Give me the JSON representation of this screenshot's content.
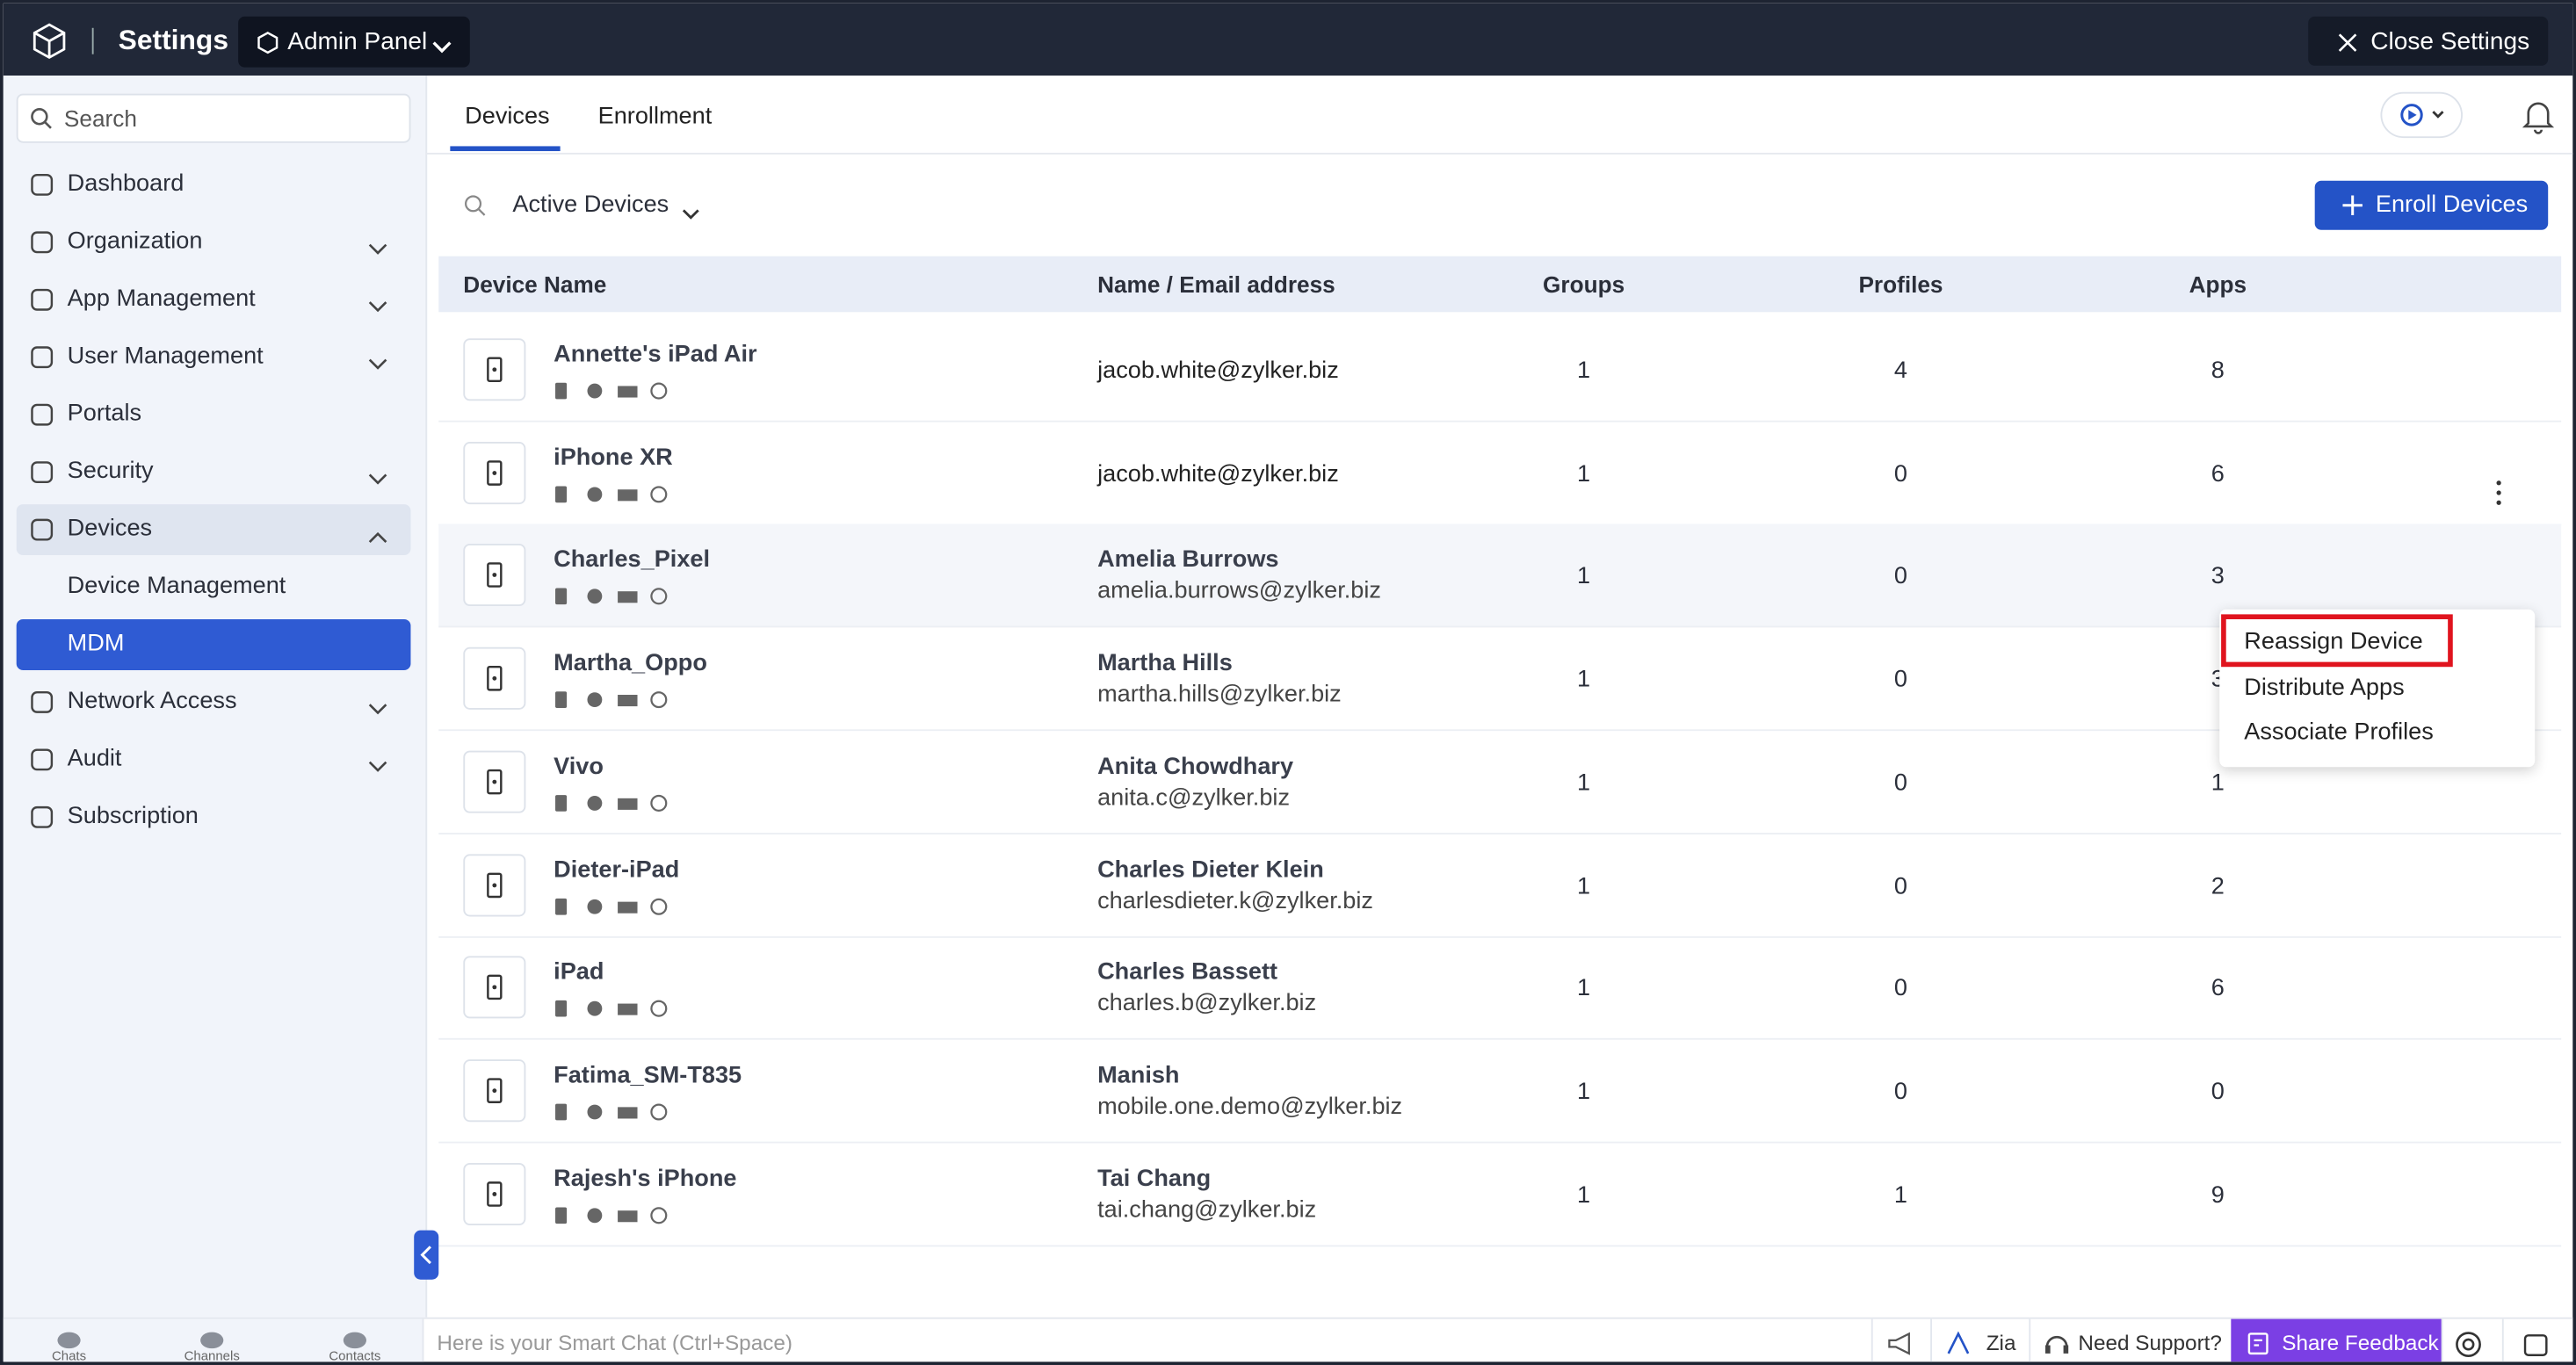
{
  "header": {
    "title": "Settings",
    "panel": "Admin Panel",
    "close": "Close Settings"
  },
  "sidebar": {
    "search": "Search",
    "items": [
      {
        "label": "Dashboard"
      },
      {
        "label": "Organization",
        "chevron": "down"
      },
      {
        "label": "App Management",
        "chevron": "down"
      },
      {
        "label": "User Management",
        "chevron": "down"
      },
      {
        "label": "Portals"
      },
      {
        "label": "Security",
        "chevron": "down"
      },
      {
        "label": "Devices",
        "chevron": "up",
        "highlighted": true,
        "children": [
          {
            "label": "Device Management"
          },
          {
            "label": "MDM",
            "selected": true
          }
        ]
      },
      {
        "label": "Network Access",
        "chevron": "down"
      },
      {
        "label": "Audit",
        "chevron": "down"
      },
      {
        "label": "Subscription"
      }
    ]
  },
  "tabs": [
    {
      "label": "Devices",
      "active": true
    },
    {
      "label": "Enrollment"
    }
  ],
  "filter": "Active Devices",
  "enroll_button": "Enroll Devices",
  "table": {
    "columns": [
      "Device Name",
      "Name / Email address",
      "Groups",
      "Profiles",
      "Apps"
    ],
    "rows": [
      {
        "device": "Annette's iPad Air",
        "email": "jacob.white@zylker.biz",
        "groups": 1,
        "profiles": 4,
        "apps": 8
      },
      {
        "device": "iPhone XR",
        "email": "jacob.white@zylker.biz",
        "groups": 1,
        "profiles": 0,
        "apps": 6
      },
      {
        "device": "Charles_Pixel",
        "user": "Amelia Burrows",
        "email": "amelia.burrows@zylker.biz",
        "groups": 1,
        "profiles": 0,
        "apps": 3,
        "hovered": true
      },
      {
        "device": "Martha_Oppo",
        "user": "Martha Hills",
        "email": "martha.hills@zylker.biz",
        "groups": 1,
        "profiles": 0,
        "apps": 3
      },
      {
        "device": "Vivo",
        "user": "Anita Chowdhary",
        "email": "anita.c@zylker.biz",
        "groups": 1,
        "profiles": 0,
        "apps": 1
      },
      {
        "device": "Dieter-iPad",
        "user": "Charles Dieter Klein",
        "email": "charlesdieter.k@zylker.biz",
        "groups": 1,
        "profiles": 0,
        "apps": 2
      },
      {
        "device": "iPad",
        "user": "Charles Bassett",
        "email": "charles.b@zylker.biz",
        "groups": 1,
        "profiles": 0,
        "apps": 6
      },
      {
        "device": "Fatima_SM-T835",
        "user": "Manish",
        "email": "mobile.one.demo@zylker.biz",
        "groups": 1,
        "profiles": 0,
        "apps": 0
      },
      {
        "device": "Rajesh's iPhone",
        "user": "Tai Chang",
        "email": "tai.chang@zylker.biz",
        "groups": 1,
        "profiles": 1,
        "apps": 9
      }
    ]
  },
  "context_menu": {
    "items": [
      "Reassign Device",
      "Distribute Apps",
      "Associate Profiles"
    ]
  },
  "bottom_bar": {
    "apps": [
      "Chats",
      "Channels",
      "Contacts"
    ],
    "chat_placeholder": "Here is your Smart Chat (Ctrl+Space)",
    "zia": "Zia",
    "support": "Need Support?",
    "feedback": "Share Feedback"
  }
}
